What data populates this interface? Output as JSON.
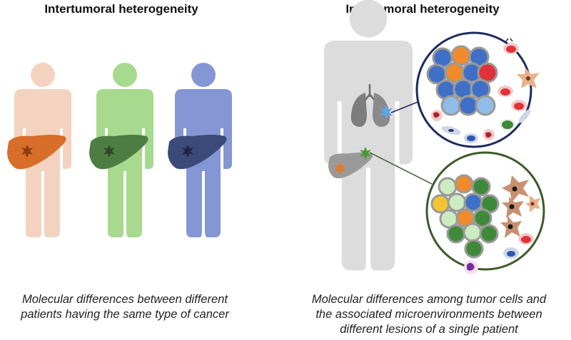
{
  "left": {
    "heading": "Intertumoral heterogeneity",
    "caption_line1": "Molecular differences between different",
    "caption_line2": "patients having the same type of cancer",
    "patients": [
      {
        "body_color": "#f3d3c0",
        "liver_color": "#d96d2a",
        "tumor_color": "#8a3c12"
      },
      {
        "body_color": "#a7d98f",
        "liver_color": "#4e7d44",
        "tumor_color": "#2a4a24"
      },
      {
        "body_color": "#8596d4",
        "liver_color": "#3b4a78",
        "tumor_color": "#1e2744"
      }
    ]
  },
  "right": {
    "heading": "Intratumoral heterogeneity",
    "caption_line1": "Molecular differences among tumor cells and",
    "caption_line2": "the associated microenvironments between",
    "caption_line3": "different lesions of a single patient",
    "patient_body_color": "#dcdcdc",
    "lung_lesion_circle_color": "#1e2a5e",
    "liver_lesion_circle_color": "#3e5a2a"
  }
}
